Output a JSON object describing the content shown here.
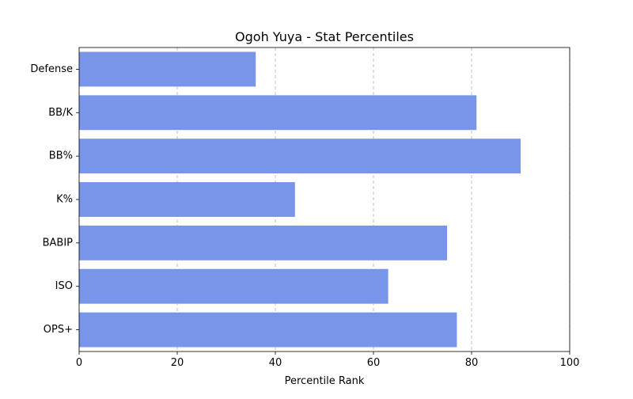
{
  "chart_data": {
    "type": "bar",
    "orientation": "horizontal",
    "title": "Ogoh Yuya - Stat Percentiles",
    "xlabel": "Percentile Rank",
    "ylabel": "",
    "categories": [
      "Defense",
      "BB/K",
      "BB%",
      "K%",
      "BABIP",
      "ISO",
      "OPS+"
    ],
    "values": [
      36,
      81,
      90,
      44,
      75,
      63,
      77
    ],
    "xlim": [
      0,
      100
    ],
    "xticks": [
      0,
      20,
      40,
      60,
      80,
      100
    ],
    "grid": "x-dashed",
    "bar_color": "#7895e9"
  }
}
